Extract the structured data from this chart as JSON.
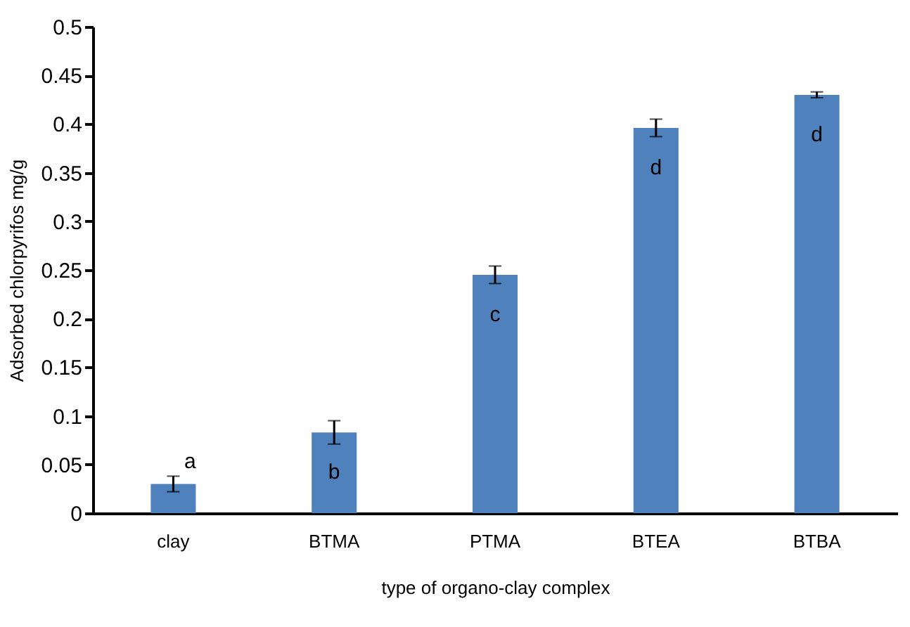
{
  "chart_data": {
    "type": "bar",
    "xlabel": "type of organo-clay complex",
    "ylabel": "Adsorbed chlorpyrifos mg/g",
    "categories": [
      "clay",
      "BTMA",
      "PTMA",
      "BTEA",
      "BTBA"
    ],
    "values": [
      0.03,
      0.083,
      0.245,
      0.396,
      0.43
    ],
    "errors": [
      0.008,
      0.012,
      0.009,
      0.009,
      0.003
    ],
    "color": "#4f81bd",
    "ylim": [
      0,
      0.5
    ],
    "yticks": [
      0,
      0.05,
      0.1,
      0.15,
      0.2,
      0.25,
      0.3,
      0.35,
      0.4,
      0.45,
      0.5
    ],
    "grid": false,
    "annotations": [
      "a",
      "b",
      "c",
      "d",
      "d"
    ]
  }
}
